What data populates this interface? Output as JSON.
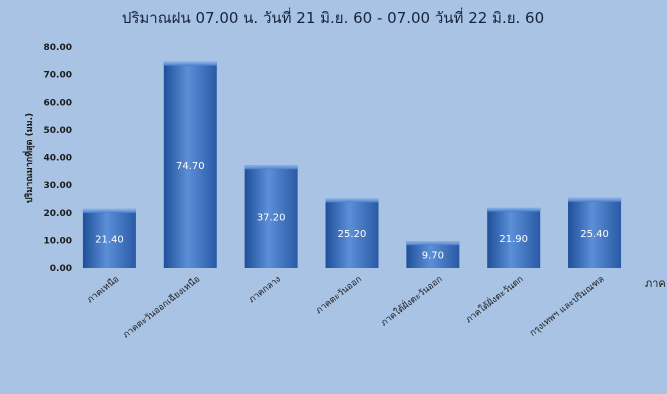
{
  "chart_data": {
    "type": "bar",
    "title": "ปริมาณฝน 07.00 น. วันที่ 21 มิ.ย. 60 - 07.00 วันที่ 22 มิ.ย. 60",
    "xlabel": "ภาค",
    "ylabel": "ปริมาณมากที่สุด (มม.)",
    "categories": [
      "ภาคเหนือ",
      "ภาคตะวันออกเฉียงเหนือ",
      "ภาคกลาง",
      "ภาคตะวันออก",
      "ภาคใต้ฝั่งตะวันออก",
      "ภาคใต้ฝั่งตะวันตก",
      "กรุงเทพฯ และปริมณฑล"
    ],
    "values": [
      21.4,
      74.7,
      37.2,
      25.2,
      9.7,
      21.9,
      25.4
    ],
    "value_labels": [
      "21.40",
      "74.70",
      "37.20",
      "25.20",
      "9.70",
      "21.90",
      "25.40"
    ],
    "ylim": [
      0,
      80
    ],
    "yticks": [
      "0.00",
      "10.00",
      "20.00",
      "30.00",
      "40.00",
      "50.00",
      "60.00",
      "70.00",
      "80.00"
    ],
    "grid": false,
    "legend": "none",
    "colors": {
      "background": "#a9c3e4",
      "bar_light": "#5b8fd6",
      "bar_dark": "#1f4f9a",
      "label": "#ffffff"
    }
  }
}
